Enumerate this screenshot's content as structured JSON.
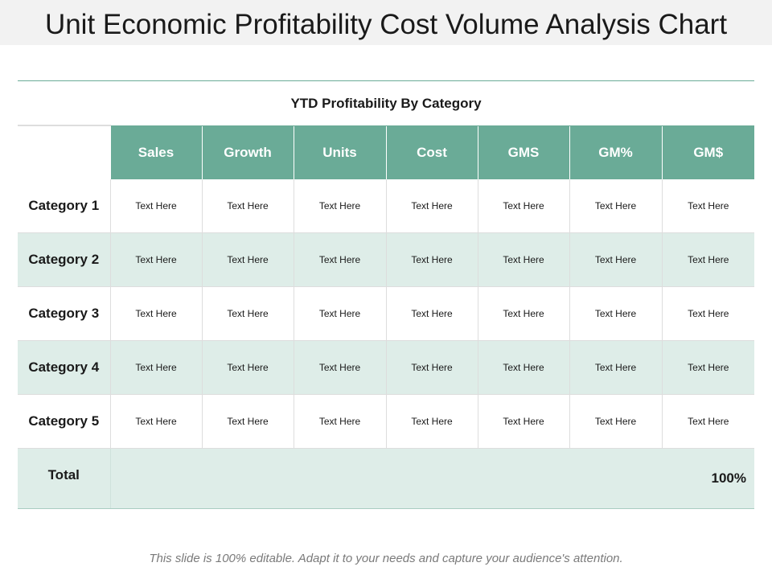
{
  "slide": {
    "title": "Unit Economic Profitability Cost Volume Analysis Chart",
    "subtitle": "YTD Profitability  By Category",
    "footer": "This slide is 100% editable. Adapt it to your needs and capture your audience's attention."
  },
  "table": {
    "columns": [
      "Sales",
      "Growth",
      "Units",
      "Cost",
      "GMS",
      "GM%",
      "GM$"
    ],
    "rows": [
      {
        "label": "Category 1",
        "cells": [
          "Text Here",
          "Text Here",
          "Text Here",
          "Text Here",
          "Text Here",
          "Text Here",
          "Text Here"
        ]
      },
      {
        "label": "Category 2",
        "cells": [
          "Text Here",
          "Text Here",
          "Text Here",
          "Text Here",
          "Text Here",
          "Text Here",
          "Text Here"
        ]
      },
      {
        "label": "Category 3",
        "cells": [
          "Text Here",
          "Text Here",
          "Text Here",
          "Text Here",
          "Text Here",
          "Text Here",
          "Text Here"
        ]
      },
      {
        "label": "Category 4",
        "cells": [
          "Text Here",
          "Text Here",
          "Text Here",
          "Text Here",
          "Text Here",
          "Text Here",
          "Text Here"
        ]
      },
      {
        "label": "Category 5",
        "cells": [
          "Text Here",
          "Text Here",
          "Text Here",
          "Text Here",
          "Text Here",
          "Text Here",
          "Text Here"
        ]
      }
    ],
    "total": {
      "label": "Total",
      "value": "100%"
    }
  },
  "colors": {
    "header_fill": "#6aab97",
    "shaded_row": "#deede8",
    "title_bar": "#f2f2f2"
  }
}
